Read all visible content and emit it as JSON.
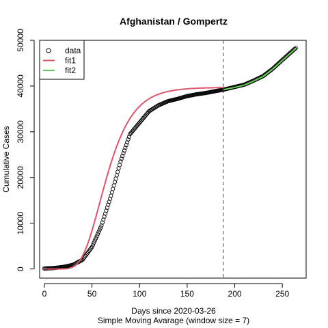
{
  "chart_data": {
    "type": "scatter",
    "title": "Afghanistan / Gompertz",
    "xlabel": "Days since 2020-03-26",
    "xlabel2": "Simple Moving Avarage (window size = 7)",
    "ylabel": "Cumulative Cases",
    "xlim": [
      -5,
      275
    ],
    "ylim": [
      -2000,
      50000
    ],
    "xticks": [
      0,
      50,
      100,
      150,
      200,
      250
    ],
    "yticks": [
      0,
      10000,
      20000,
      30000,
      40000,
      50000
    ],
    "vline_x": 188,
    "legend_position": "top-left",
    "legend": [
      {
        "label": "data",
        "kind": "circle",
        "color": "#000000"
      },
      {
        "label": "fit1",
        "kind": "line",
        "color": "#DF536B"
      },
      {
        "label": "fit2",
        "kind": "line",
        "color": "#61D04F"
      }
    ],
    "data_series": {
      "name": "data",
      "x_start": 0,
      "x_end": 264,
      "knots": [
        [
          0,
          100
        ],
        [
          10,
          200
        ],
        [
          20,
          450
        ],
        [
          30,
          900
        ],
        [
          40,
          2000
        ],
        [
          50,
          4800
        ],
        [
          60,
          9500
        ],
        [
          70,
          16000
        ],
        [
          80,
          23500
        ],
        [
          90,
          29500
        ],
        [
          100,
          32000
        ],
        [
          110,
          34500
        ],
        [
          120,
          35800
        ],
        [
          130,
          36700
        ],
        [
          140,
          37200
        ],
        [
          150,
          37800
        ],
        [
          160,
          38200
        ],
        [
          170,
          38500
        ],
        [
          180,
          38900
        ],
        [
          188,
          39200
        ],
        [
          200,
          39800
        ],
        [
          210,
          40300
        ],
        [
          220,
          41200
        ],
        [
          230,
          42200
        ],
        [
          240,
          43800
        ],
        [
          250,
          45700
        ],
        [
          264,
          48300
        ]
      ]
    },
    "series": [
      {
        "name": "fit1",
        "color": "#DF536B",
        "x_range": [
          0,
          188
        ],
        "model": "gompertz",
        "params": {
          "a": 39700,
          "b": 22,
          "c": 0.053
        }
      },
      {
        "name": "fit2",
        "color": "#61D04F",
        "x_range": [
          188,
          264
        ],
        "knots": [
          [
            188,
            39200
          ],
          [
            200,
            39700
          ],
          [
            210,
            40200
          ],
          [
            220,
            41100
          ],
          [
            230,
            42100
          ],
          [
            240,
            43700
          ],
          [
            250,
            45600
          ],
          [
            264,
            48200
          ]
        ]
      }
    ]
  }
}
